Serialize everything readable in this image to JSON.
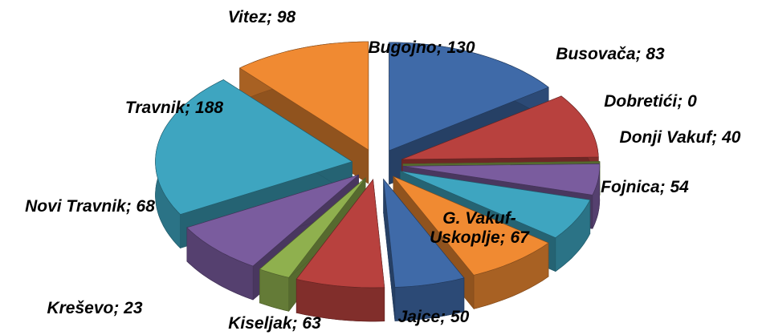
{
  "chart_data": {
    "type": "pie",
    "values": [
      130,
      83,
      0,
      40,
      54,
      67,
      50,
      63,
      23,
      68,
      188,
      98
    ],
    "value_labels": [
      "Bugojno; 130",
      "Busovača; 83",
      "Dobretići; 0",
      "Donji Vakuf; 40",
      "Fojnica; 54",
      "G. Vakuf-Uskoplje; 67",
      "Jajce; 50",
      "Kiseljak; 63",
      "Kreševo; 23",
      "Novi Travnik; 68",
      "Travnik; 188",
      "Vitez; 98"
    ],
    "colors": [
      "#3f6aa8",
      "#b8413e",
      "#8fb04e",
      "#7a5c9e",
      "#3ea5c0",
      "#f08a32",
      "#3f6aa8",
      "#b8413e",
      "#8fb04e",
      "#7a5c9e",
      "#3ea5c0",
      "#f08a32"
    ]
  }
}
